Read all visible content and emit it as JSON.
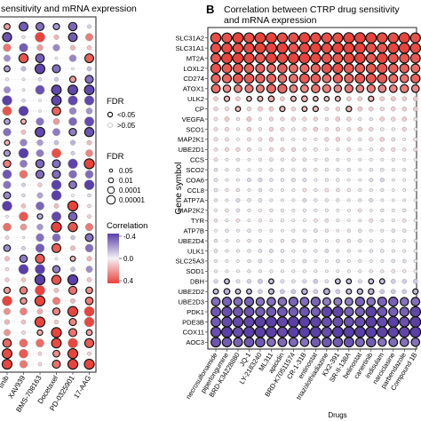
{
  "panel_a": {
    "title": "sensitivity and mRNA expression",
    "drugs": [
      "tinib",
      "XAV939",
      "BMS-708163",
      "Docetaxel",
      "PD-0325901",
      "17-AAG"
    ]
  },
  "panel_b": {
    "letter": "B",
    "title_line1": "Correlation between CTRP drug sensitivity",
    "title_line2": "and mRNA expression",
    "ylabel": "Gene symbol",
    "xlabel": "Drugs"
  },
  "legend": {
    "fdr_title": "FDR",
    "fdr_items": [
      "<0.05",
      ">0.05"
    ],
    "size_title": "FDR",
    "size_items": [
      "0.05",
      "0.01",
      "0.0001",
      "0.00001"
    ],
    "corr_title": "Correlation",
    "corr_ticks": [
      "-0.4",
      "0.0",
      "0.4"
    ],
    "colors": {
      "neg": "#5a3fa8",
      "mid": "#f4f1f6",
      "pos": "#e8433c"
    }
  },
  "chart_data": {
    "type": "scatter",
    "genes": [
      "SLC31A2",
      "SLC31A1",
      "MT2A",
      "LOXL2",
      "CD274",
      "ATOX1",
      "ULK2",
      "CP",
      "VEGFA",
      "SCO1",
      "MAP2K1",
      "UBE2D1",
      "CCS",
      "SCO2",
      "COA6",
      "CCL8",
      "ATP7A",
      "MAP2K2",
      "TYR",
      "ATP7B",
      "UBE2D4",
      "ULK1",
      "SLC25A3",
      "SOD1",
      "DBH",
      "UBE2D2",
      "UBE2D3",
      "PDK1",
      "PDE3B",
      "COX11",
      "AOC3"
    ],
    "drugs": [
      "necrosulfonamide",
      "piperlongumine",
      "BRD-K34228880",
      "JQ-1",
      "LY-2183240",
      "ML311",
      "apicidin",
      "BRD-K70511574",
      "CR-1-31B",
      "entinostat",
      "triazolothiadiazine",
      "KX2-391",
      "SR-II-138A",
      "belinostat",
      "canertinib",
      "indisulam",
      "narciclasine",
      "parbendazole",
      "Compound 1B"
    ],
    "gene_correlation": [
      0.4,
      0.4,
      0.38,
      0.34,
      0.32,
      0.28,
      0.12,
      0.1,
      0.06,
      0.05,
      0.04,
      0.04,
      0.02,
      0.0,
      -0.03,
      0.0,
      -0.02,
      0.0,
      0.02,
      -0.01,
      0.0,
      -0.02,
      -0.01,
      0.0,
      -0.08,
      -0.12,
      -0.3,
      -0.36,
      -0.38,
      -0.4,
      -0.32
    ],
    "correlation_range": [
      -0.4,
      0.4
    ]
  }
}
